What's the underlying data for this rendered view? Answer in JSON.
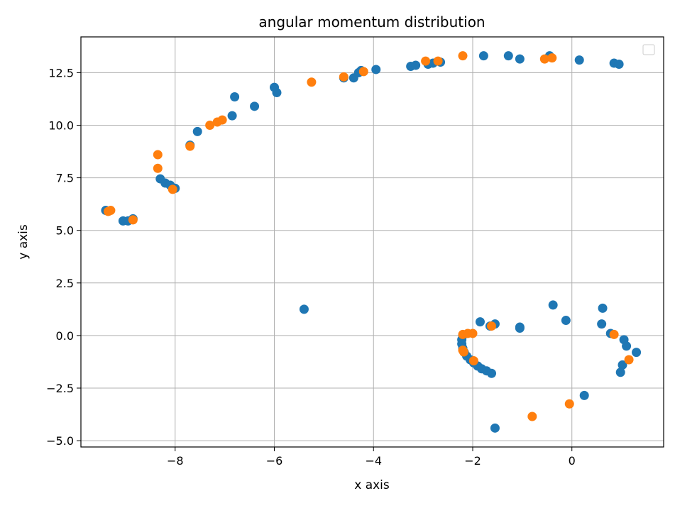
{
  "chart_data": {
    "type": "scatter",
    "title": "angular momentum distribution",
    "xlabel": "x axis",
    "ylabel": "y axis",
    "xlim": [
      -9.9,
      1.85
    ],
    "ylim": [
      -5.3,
      14.2
    ],
    "xticks": [
      -8,
      -6,
      -4,
      -2,
      0
    ],
    "xtick_labels": [
      "−8",
      "−6",
      "−4",
      "−2",
      "0"
    ],
    "yticks": [
      -5.0,
      -2.5,
      0.0,
      2.5,
      5.0,
      7.5,
      10.0,
      12.5
    ],
    "ytick_labels": [
      "−5.0",
      "−2.5",
      "0.0",
      "2.5",
      "5.0",
      "7.5",
      "10.0",
      "12.5"
    ],
    "grid": true,
    "legend": {
      "location": "upper right",
      "entries": []
    },
    "colors": {
      "series1": "#1f77b4",
      "series2": "#ff7f0e"
    },
    "series": [
      {
        "color": "#1f77b4",
        "points": [
          [
            -9.4,
            5.95
          ],
          [
            -9.05,
            5.45
          ],
          [
            -8.95,
            5.45
          ],
          [
            -8.85,
            5.55
          ],
          [
            -8.3,
            7.45
          ],
          [
            -8.2,
            7.25
          ],
          [
            -8.1,
            7.15
          ],
          [
            -8.0,
            7.0
          ],
          [
            -7.7,
            9.05
          ],
          [
            -7.55,
            9.7
          ],
          [
            -6.85,
            10.45
          ],
          [
            -6.8,
            11.35
          ],
          [
            -6.4,
            10.9
          ],
          [
            -6.0,
            11.8
          ],
          [
            -5.95,
            11.55
          ],
          [
            -4.6,
            12.25
          ],
          [
            -4.4,
            12.25
          ],
          [
            -4.3,
            12.5
          ],
          [
            -4.25,
            12.6
          ],
          [
            -3.95,
            12.65
          ],
          [
            -3.25,
            12.8
          ],
          [
            -3.15,
            12.85
          ],
          [
            -2.9,
            12.9
          ],
          [
            -2.8,
            12.95
          ],
          [
            -2.65,
            13.0
          ],
          [
            -1.78,
            13.3
          ],
          [
            -1.28,
            13.3
          ],
          [
            -1.05,
            13.15
          ],
          [
            -0.45,
            13.3
          ],
          [
            0.15,
            13.1
          ],
          [
            0.85,
            12.95
          ],
          [
            0.95,
            12.9
          ],
          [
            -5.4,
            1.25
          ],
          [
            -2.2,
            0.0
          ],
          [
            -2.22,
            -0.2
          ],
          [
            -2.22,
            -0.4
          ],
          [
            -2.2,
            -0.6
          ],
          [
            -2.17,
            -0.8
          ],
          [
            -2.12,
            -0.98
          ],
          [
            -2.05,
            -1.15
          ],
          [
            -1.98,
            -1.3
          ],
          [
            -1.9,
            -1.45
          ],
          [
            -1.82,
            -1.58
          ],
          [
            -1.72,
            -1.68
          ],
          [
            -1.62,
            -1.8
          ],
          [
            -1.85,
            0.65
          ],
          [
            -1.65,
            0.45
          ],
          [
            -1.55,
            0.55
          ],
          [
            -1.05,
            0.35
          ],
          [
            -1.05,
            0.4
          ],
          [
            -0.38,
            1.45
          ],
          [
            -0.12,
            0.72
          ],
          [
            0.62,
            1.3
          ],
          [
            0.6,
            0.55
          ],
          [
            0.78,
            0.1
          ],
          [
            1.05,
            -0.2
          ],
          [
            1.1,
            -0.5
          ],
          [
            1.3,
            -0.8
          ],
          [
            1.02,
            -1.4
          ],
          [
            0.98,
            -1.75
          ],
          [
            0.25,
            -2.85
          ],
          [
            -1.55,
            -4.4
          ]
        ]
      },
      {
        "color": "#ff7f0e",
        "points": [
          [
            -9.35,
            5.9
          ],
          [
            -9.3,
            5.95
          ],
          [
            -8.85,
            5.5
          ],
          [
            -8.35,
            8.6
          ],
          [
            -8.35,
            7.95
          ],
          [
            -8.05,
            6.95
          ],
          [
            -7.7,
            9.0
          ],
          [
            -7.3,
            10.0
          ],
          [
            -7.15,
            10.15
          ],
          [
            -7.05,
            10.25
          ],
          [
            -5.25,
            12.05
          ],
          [
            -4.6,
            12.3
          ],
          [
            -4.2,
            12.55
          ],
          [
            -2.95,
            13.05
          ],
          [
            -2.7,
            13.05
          ],
          [
            -2.2,
            13.3
          ],
          [
            -0.55,
            13.15
          ],
          [
            -0.4,
            13.2
          ],
          [
            -2.2,
            0.05
          ],
          [
            -2.1,
            0.1
          ],
          [
            -2.0,
            0.1
          ],
          [
            -2.2,
            -0.7
          ],
          [
            -2.18,
            -0.78
          ],
          [
            -1.98,
            -1.2
          ],
          [
            -1.62,
            0.45
          ],
          [
            0.85,
            0.05
          ],
          [
            1.15,
            -1.15
          ],
          [
            -0.05,
            -3.25
          ],
          [
            -0.8,
            -3.85
          ]
        ]
      }
    ]
  }
}
